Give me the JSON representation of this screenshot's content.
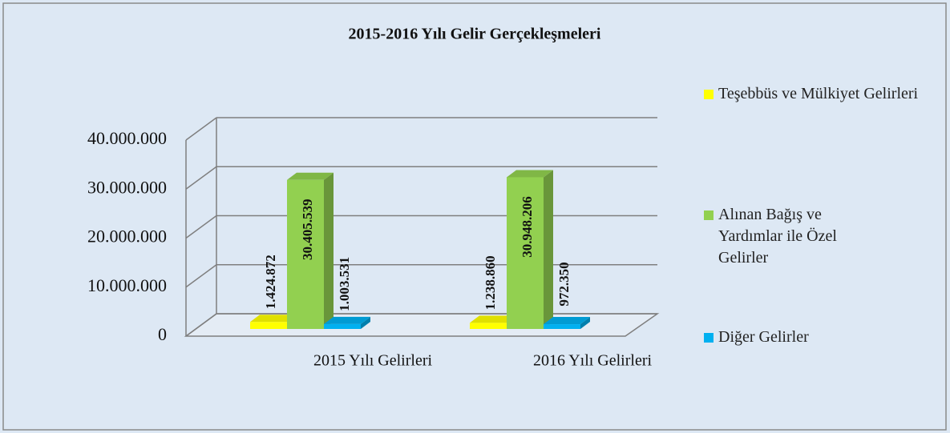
{
  "chart_data": {
    "type": "bar3d",
    "title": "2015-2016 Yılı Gelir Gerçekleşmeleri",
    "categories": [
      "2015 Yılı Gelirleri",
      "2016 Yılı Gelirleri"
    ],
    "series": [
      {
        "name": "Teşebbüs ve Mülkiyet Gelirleri",
        "color": "#ffff00",
        "values": [
          1424872,
          1238860
        ],
        "value_labels": [
          "1.424.872",
          "1.238.860"
        ]
      },
      {
        "name": "Alınan Bağış ve Yardımlar ile Özel Gelirler",
        "color": "#92d050",
        "values": [
          30405539,
          30948206
        ],
        "value_labels": [
          "30.405.539",
          "30.948.206"
        ]
      },
      {
        "name": "Diğer Gelirler",
        "color": "#00b0f0",
        "values": [
          1003531,
          972350
        ],
        "value_labels": [
          "1.003.531",
          "972.350"
        ]
      }
    ],
    "ylim": [
      0,
      40000000
    ],
    "yticks": [
      0,
      {
        "value": 10000000,
        "label": "10.000.000"
      },
      {
        "value": 20000000,
        "label": "20.000.000"
      },
      {
        "value": 30000000,
        "label": "30.000.000"
      },
      {
        "value": 40000000,
        "label": "40.000.000"
      }
    ],
    "grid": true
  }
}
